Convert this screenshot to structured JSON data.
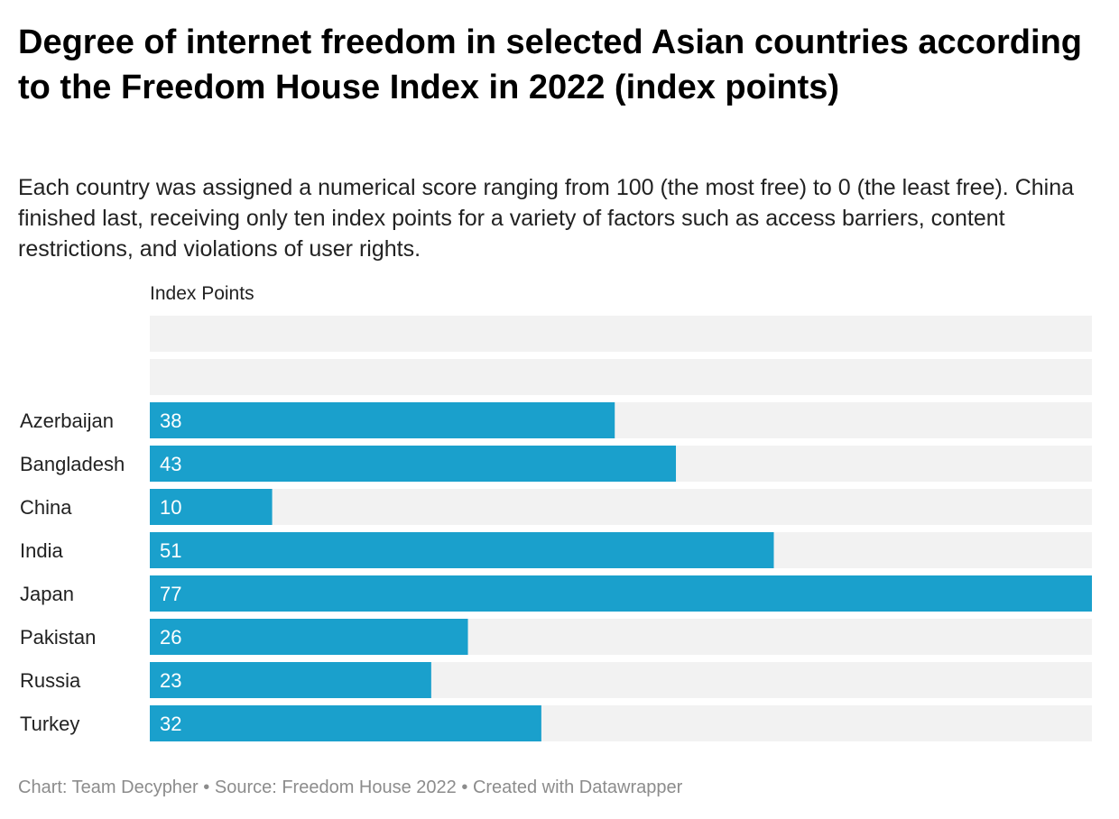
{
  "title": "Degree of internet freedom in selected Asian countries according to the Freedom House Index in 2022 (index points)",
  "subtitle": "Each country was assigned a numerical score ranging from 100 (the most free) to 0 (the least free). China finished last, receiving only ten index points for a variety of factors such as access barriers, content restrictions, and violations of user rights.",
  "footer": {
    "credit": "Chart: Team Decypher",
    "separator": "•",
    "source": "Source: Freedom House 2022",
    "created": "Created with Datawrapper"
  },
  "colors": {
    "bar": "#1aa0cc",
    "track": "#f2f2f2",
    "label": "#222222",
    "value_text": "#ffffff",
    "footer": "#8c8c8c"
  },
  "chart_data": {
    "type": "bar",
    "orientation": "horizontal",
    "column_header": "Index Points",
    "categories": [
      "",
      "",
      "Azerbaijan",
      "Bangladesh",
      "China",
      "India",
      "Japan",
      "Pakistan",
      "Russia",
      "Turkey"
    ],
    "values": [
      null,
      null,
      38,
      43,
      10,
      51,
      77,
      26,
      23,
      32
    ],
    "xlim": [
      0,
      77
    ],
    "grid": false,
    "legend": "none"
  }
}
